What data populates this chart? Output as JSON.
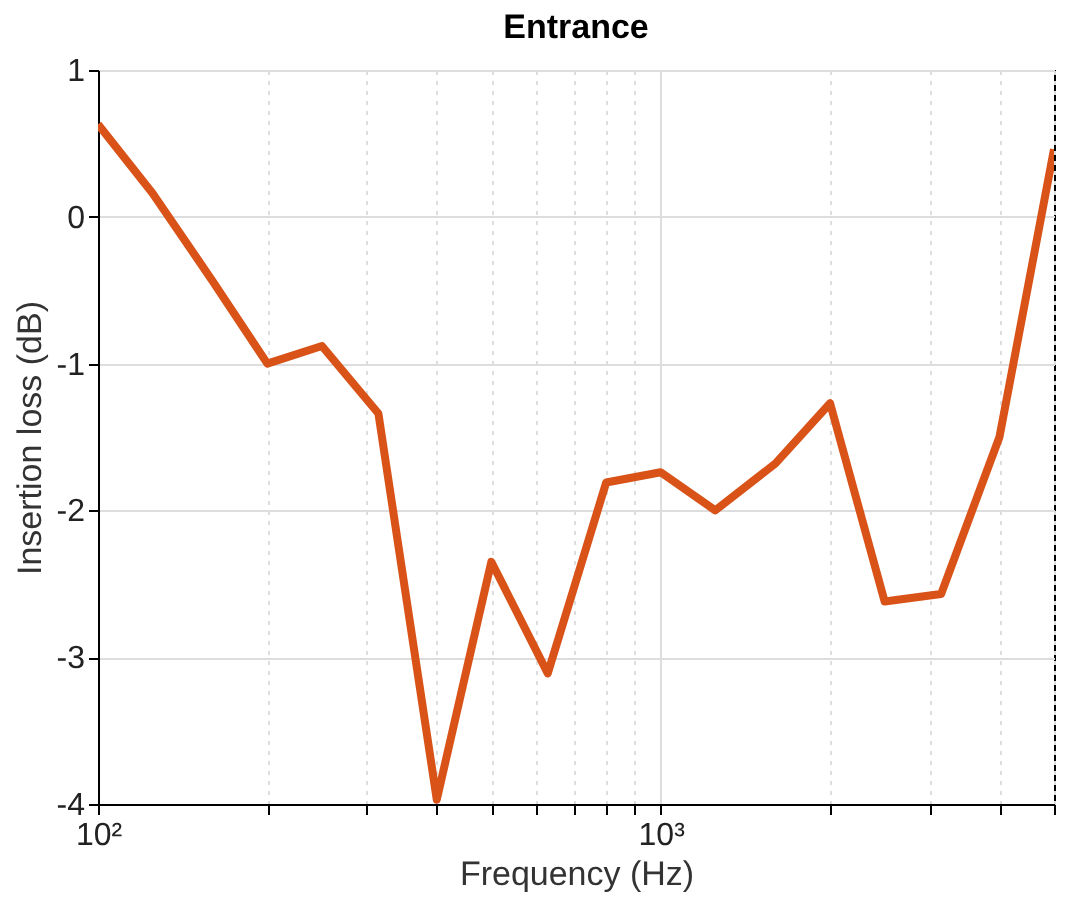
{
  "chart_data": {
    "type": "line",
    "title": "Entrance",
    "xlabel": "Frequency (Hz)",
    "ylabel": "Insertion loss (dB)",
    "x": [
      100,
      125,
      160,
      200,
      250,
      315,
      400,
      500,
      630,
      800,
      1000,
      1250,
      1600,
      2000,
      2500,
      3150,
      4000,
      5000
    ],
    "series": [
      {
        "color": "#d95319",
        "values": [
          0.63,
          0.16,
          -0.44,
          -1.0,
          -0.88,
          -1.34,
          -3.97,
          -2.35,
          -3.11,
          -1.81,
          -1.74,
          -2.0,
          -1.68,
          -1.27,
          -2.62,
          -2.57,
          -1.5,
          0.46
        ]
      }
    ],
    "log": "x",
    "xlim": [
      100,
      5000
    ],
    "ylim": [
      -4,
      1
    ],
    "xticks": [
      {
        "value": 100,
        "label": "10²"
      },
      {
        "value": 200,
        "label": null
      },
      {
        "value": 300,
        "label": null
      },
      {
        "value": 400,
        "label": null
      },
      {
        "value": 500,
        "label": null
      },
      {
        "value": 600,
        "label": null
      },
      {
        "value": 700,
        "label": null
      },
      {
        "value": 800,
        "label": null
      },
      {
        "value": 900,
        "label": null
      },
      {
        "value": 1000,
        "label": "10³"
      },
      {
        "value": 2000,
        "label": null
      },
      {
        "value": 3000,
        "label": null
      },
      {
        "value": 4000,
        "label": null
      },
      {
        "value": 5000,
        "label": null
      }
    ],
    "yticks": [
      -4,
      -3,
      -2,
      -1,
      0,
      1
    ],
    "grid": true,
    "line_style": "solid"
  }
}
